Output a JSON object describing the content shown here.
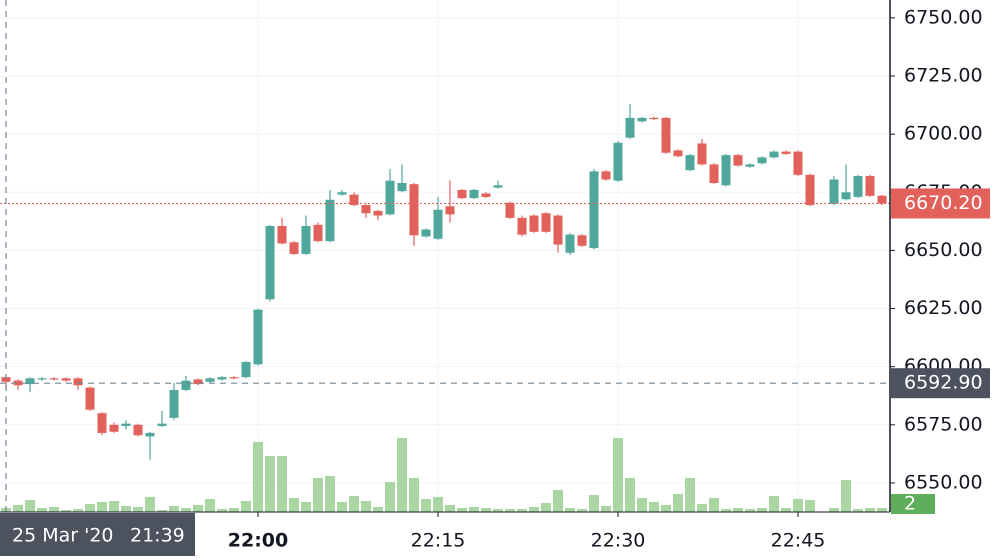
{
  "chart_data": {
    "type": "candlestick",
    "x": [
      "21:39",
      "21:40",
      "21:41",
      "21:42",
      "21:43",
      "21:44",
      "21:45",
      "21:46",
      "21:47",
      "21:48",
      "21:49",
      "21:50",
      "21:51",
      "21:52",
      "21:53",
      "21:54",
      "21:55",
      "21:56",
      "21:57",
      "21:58",
      "21:59",
      "22:00",
      "22:01",
      "22:02",
      "22:03",
      "22:04",
      "22:05",
      "22:06",
      "22:07",
      "22:08",
      "22:09",
      "22:10",
      "22:11",
      "22:12",
      "22:13",
      "22:14",
      "22:15",
      "22:16",
      "22:17",
      "22:18",
      "22:19",
      "22:20",
      "22:21",
      "22:22",
      "22:23",
      "22:24",
      "22:25",
      "22:26",
      "22:27",
      "22:28",
      "22:29",
      "22:30",
      "22:31",
      "22:32",
      "22:33",
      "22:34",
      "22:35",
      "22:36",
      "22:37",
      "22:38",
      "22:39",
      "22:40",
      "22:41",
      "22:42",
      "22:43",
      "22:44",
      "22:45",
      "22:46",
      "22:47",
      "22:48",
      "22:49",
      "22:50",
      "22:51",
      "22:52"
    ],
    "open": [
      6595.5,
      6594,
      6592.5,
      6594.5,
      6595,
      6595,
      6595,
      6591,
      6580,
      6575,
      6574.5,
      6575,
      6570,
      6574.5,
      6578,
      6590,
      6594.5,
      6593.5,
      6594.5,
      6595.5,
      6595.5,
      6601,
      6629,
      6660.5,
      6653.5,
      6648.5,
      6661,
      6654,
      6674,
      6674,
      6669.5,
      6667,
      6665.5,
      6675.5,
      6678.5,
      6656,
      6655,
      6669,
      6676,
      6672.5,
      6674.5,
      6677,
      6670.5,
      6664,
      6665,
      6666,
      6665,
      6649,
      6656.5,
      6651,
      6684,
      6680,
      6698.5,
      6705.5,
      6707,
      6707,
      6693,
      6684.5,
      6696,
      6687,
      6678,
      6691,
      6686,
      6687.5,
      6690,
      6692.5,
      6692.5,
      6682.5,
      null,
      6670,
      6672,
      6673,
      6682,
      6673.5
    ],
    "high": [
      6596,
      6594.5,
      6595.5,
      6595.5,
      6595.5,
      6595.5,
      6595.5,
      6591.5,
      6580.5,
      6576,
      6577,
      6575.5,
      6572,
      6581,
      6593,
      6596,
      6595,
      6595.5,
      6596,
      6596,
      6602.5,
      6625,
      6661,
      6664,
      6654,
      6665,
      6662,
      6676,
      6676,
      6675,
      6670,
      6667.5,
      6685,
      6687,
      6679,
      6659.5,
      6673,
      6680,
      6676.5,
      6676.5,
      6675,
      6680,
      6671,
      6665,
      6665.5,
      6666.5,
      6665.5,
      6657.5,
      6657,
      6685,
      6684.5,
      6697,
      6713,
      6707.5,
      6707.5,
      6707.5,
      6693.5,
      6691.5,
      6698,
      6687.5,
      6691.5,
      6691.5,
      6687.5,
      6690.5,
      6693,
      6693,
      6693,
      6683,
      null,
      6682,
      6687,
      6682.5,
      6682.5,
      6674
    ],
    "low": [
      6590,
      6590,
      6589,
      6594,
      6594,
      6593.5,
      6590,
      6581,
      6570.5,
      6571.5,
      6573,
      6570,
      6560,
      6574,
      6577,
      6589.5,
      6592,
      6593,
      6594,
      6594.5,
      6595,
      6600.5,
      6628,
      6652.5,
      6648,
      6648,
      6653.5,
      6653.5,
      6673.5,
      6669,
      6664,
      6663,
      6665,
      6675,
      6652,
      6655.5,
      6654.5,
      6662,
      6672,
      6672,
      6672.5,
      6676.5,
      6663.5,
      6656,
      6657.5,
      6657.5,
      6649,
      6648,
      6651.5,
      6650.5,
      6680,
      6679.5,
      6698,
      6705,
      6706,
      6691.5,
      6690,
      6684,
      6686.5,
      6678.5,
      6677.5,
      6686,
      6685.5,
      6687,
      6689.5,
      6691,
      6682,
      6669,
      null,
      6669.5,
      6671.5,
      6672.5,
      6673,
      6669.5
    ],
    "close": [
      6593.5,
      6592,
      6595,
      6595,
      6594.5,
      6594,
      6592,
      6581.5,
      6571.5,
      6572,
      6575.5,
      6570.5,
      6571.5,
      6575.5,
      6590,
      6594,
      6592.5,
      6595,
      6595.5,
      6595,
      6602,
      6624.5,
      6660.5,
      6653,
      6648.5,
      6660.5,
      6654,
      6671.8,
      6675,
      6669.5,
      6666,
      6665,
      6680,
      6679,
      6656.5,
      6659,
      6667.5,
      6665.5,
      6672.5,
      6676,
      6673,
      6678,
      6664,
      6656.8,
      6658,
      6658,
      6652.5,
      6656.8,
      6652,
      6684,
      6680.5,
      6696.3,
      6707,
      6707,
      6706.5,
      6692,
      6690.5,
      6691,
      6687,
      6679,
      6691,
      6686.5,
      6687,
      6690,
      6692.5,
      6691.5,
      6682.5,
      6669.5,
      null,
      6680.5,
      6675,
      6682,
      6673.5,
      6670.2
    ],
    "volume": [
      2,
      3.5,
      6,
      2,
      2.5,
      1,
      1.5,
      4,
      5,
      5.5,
      3,
      2.5,
      7.5,
      1,
      3,
      2,
      3.5,
      6.5,
      1.5,
      2,
      5.5,
      35,
      28,
      28,
      7,
      5,
      17,
      18,
      5,
      8,
      5.5,
      2.5,
      15,
      37,
      17,
      6.5,
      7.5,
      3.5,
      2,
      2.5,
      2,
      1.5,
      1.5,
      1.5,
      2.5,
      4.5,
      11,
      2,
      1.5,
      8.5,
      3,
      37,
      17,
      7,
      5,
      3.5,
      9,
      17,
      4,
      7,
      1.5,
      2,
      1.5,
      2,
      8,
      2,
      6.5,
      6,
      null,
      2,
      16,
      1.5,
      2,
      2
    ],
    "up_color": "#4fa69a",
    "down_color": "#e2625b",
    "volume_color": "#a9d6a3",
    "ylim": [
      6537.5,
      6757.7
    ],
    "yticks": [
      {
        "value": 6550,
        "label": "6550.00"
      },
      {
        "value": 6575,
        "label": "6575.00"
      },
      {
        "value": 6600,
        "label": "6600.00"
      },
      {
        "value": 6625,
        "label": "6625.00"
      },
      {
        "value": 6650,
        "label": "6650.00"
      },
      {
        "value": 6675,
        "label": "6675.00"
      },
      {
        "value": 6700,
        "label": "6700.00"
      },
      {
        "value": 6725,
        "label": "6725.00"
      },
      {
        "value": 6750,
        "label": "6750.00"
      }
    ],
    "xticks": [
      "22:00",
      "22:15",
      "22:30",
      "22:45"
    ],
    "grid": true,
    "last_price": {
      "value": 6670.2,
      "label": "6670.20"
    },
    "crosshair": {
      "price": {
        "value": 6592.9,
        "label": "6592.90"
      },
      "date": "25 Mar '20",
      "time": "21:39"
    }
  }
}
